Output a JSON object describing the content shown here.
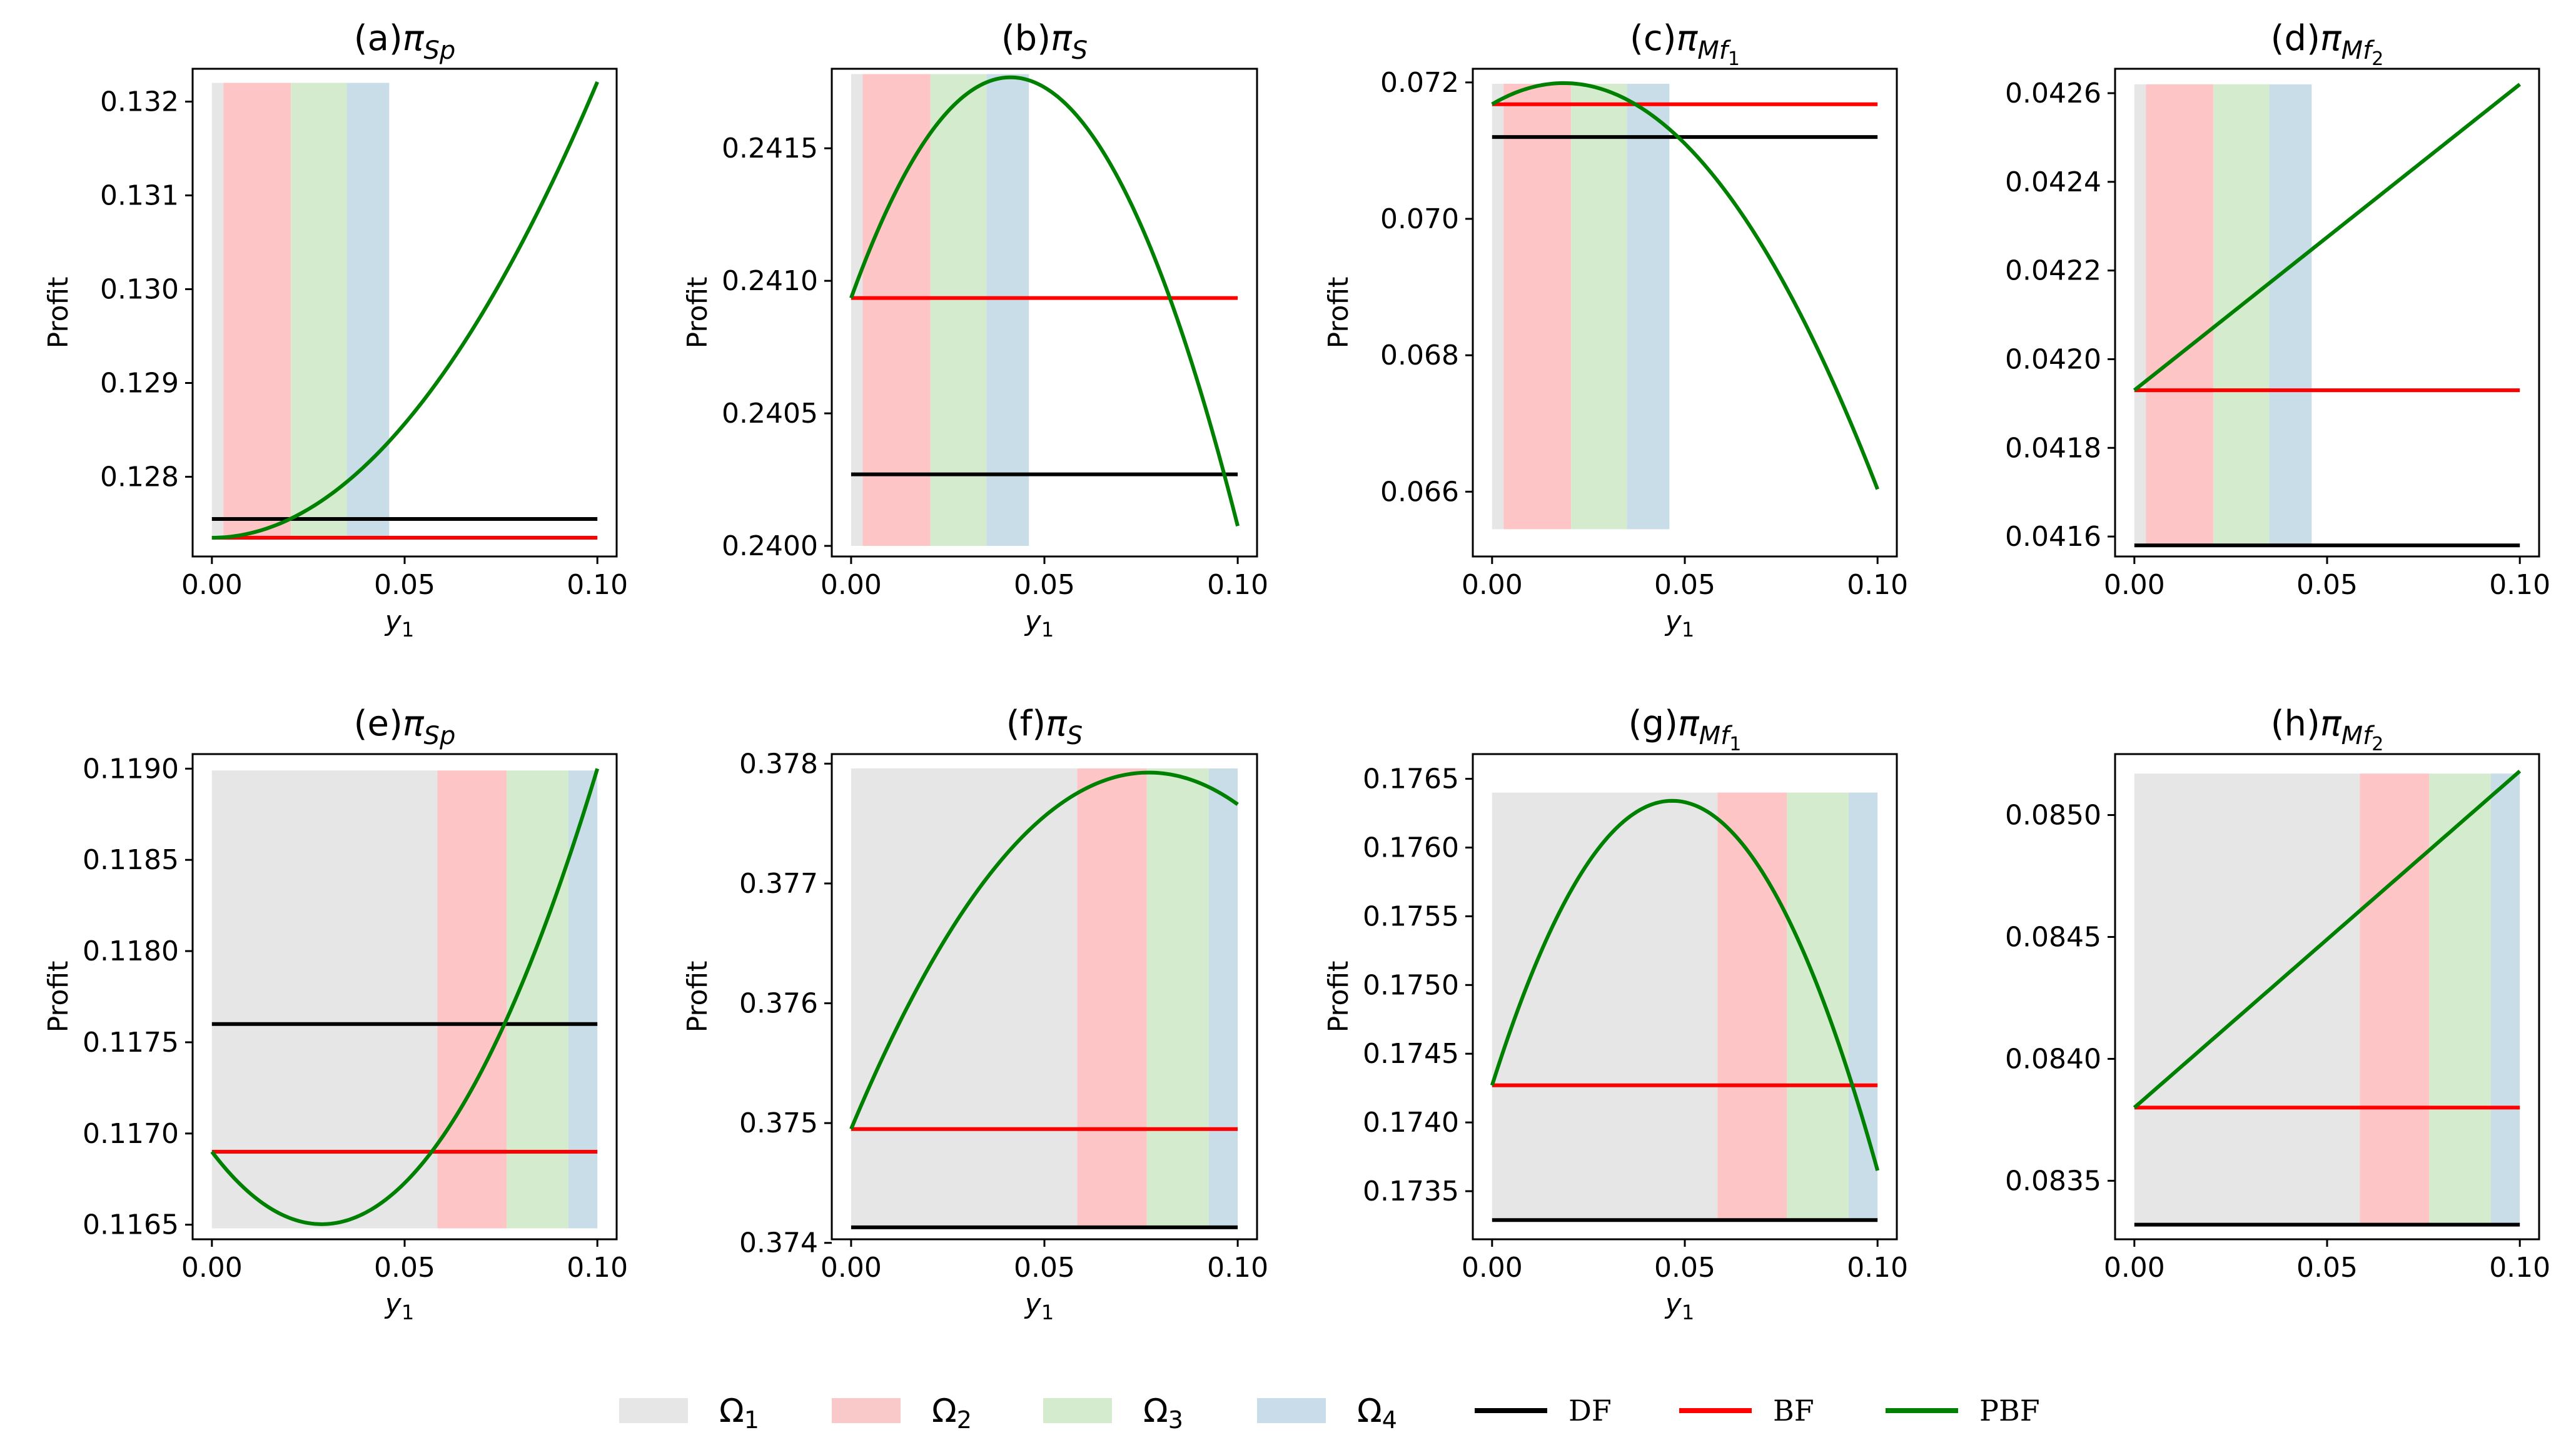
{
  "chart_data": [
    {
      "id": "a",
      "type": "line",
      "title": "(a)πSp",
      "title_prefix": "(a)",
      "title_main": "π",
      "title_sub": "Sp",
      "xlabel": "y",
      "xlabel_sub": "1",
      "ylabel": "Profit",
      "xlim": [
        -0.005,
        0.105
      ],
      "ylim": [
        127.15,
        132.35
      ],
      "yscale": 1000,
      "xticks": [
        0.0,
        0.05,
        0.1
      ],
      "xtick_labels": [
        "0.00",
        "0.05",
        "0.10"
      ],
      "yticks": [
        128,
        129,
        130,
        131,
        132
      ],
      "ytick_labels": [
        "0.128",
        "0.129",
        "0.130",
        "0.131",
        "0.132"
      ],
      "regions": [
        {
          "name": "Ω1",
          "x0": 0.0,
          "x1": 0.003
        },
        {
          "name": "Ω2",
          "x0": 0.003,
          "x1": 0.0205
        },
        {
          "name": "Ω3",
          "x0": 0.0205,
          "x1": 0.035
        },
        {
          "name": "Ω4",
          "x0": 0.035,
          "x1": 0.046
        }
      ],
      "region_y": [
        127.35,
        132.2
      ],
      "series": [
        {
          "name": "DF",
          "kind": "const",
          "value": 127.55
        },
        {
          "name": "BF",
          "kind": "const",
          "value": 127.35
        },
        {
          "name": "PBF",
          "kind": "poly",
          "coef": [
            127.35,
            0,
            486
          ]
        }
      ]
    },
    {
      "id": "b",
      "type": "line",
      "title": "(b)πS",
      "title_prefix": "(b)",
      "title_main": "π",
      "title_sub": "S",
      "xlabel": "y",
      "xlabel_sub": "1",
      "ylabel": "Profit",
      "xlim": [
        -0.005,
        0.105
      ],
      "ylim": [
        239.96,
        241.8
      ],
      "yscale": 1000,
      "xticks": [
        0.0,
        0.05,
        0.1
      ],
      "xtick_labels": [
        "0.00",
        "0.05",
        "0.10"
      ],
      "yticks": [
        240.0,
        240.5,
        241.0,
        241.5
      ],
      "ytick_labels": [
        "0.2400",
        "0.2405",
        "0.2410",
        "0.2415"
      ],
      "regions": [
        {
          "name": "Ω1",
          "x0": 0.0,
          "x1": 0.003
        },
        {
          "name": "Ω2",
          "x0": 0.003,
          "x1": 0.0205
        },
        {
          "name": "Ω3",
          "x0": 0.0205,
          "x1": 0.035
        },
        {
          "name": "Ω4",
          "x0": 0.035,
          "x1": 0.046
        }
      ],
      "region_y": [
        240.0,
        241.78
      ],
      "series": [
        {
          "name": "DF",
          "kind": "const",
          "value": 240.27
        },
        {
          "name": "BF",
          "kind": "const",
          "value": 240.935
        },
        {
          "name": "PBF",
          "kind": "poly",
          "coef": [
            240.935,
            40.4,
            -490
          ]
        }
      ]
    },
    {
      "id": "c",
      "type": "line",
      "title": "(c)πMf1",
      "title_prefix": "(c)",
      "title_main": "π",
      "title_sub": "Mf",
      "title_subsub": "1",
      "xlabel": "y",
      "xlabel_sub": "1",
      "ylabel": "Profit",
      "xlim": [
        -0.005,
        0.105
      ],
      "ylim": [
        65.05,
        72.2
      ],
      "yscale": 1000,
      "xticks": [
        0.0,
        0.05,
        0.1
      ],
      "xtick_labels": [
        "0.00",
        "0.05",
        "0.10"
      ],
      "yticks": [
        66,
        68,
        70,
        72
      ],
      "ytick_labels": [
        "0.066",
        "0.068",
        "0.070",
        "0.072"
      ],
      "regions": [
        {
          "name": "Ω1",
          "x0": 0.0,
          "x1": 0.003
        },
        {
          "name": "Ω2",
          "x0": 0.003,
          "x1": 0.0205
        },
        {
          "name": "Ω3",
          "x0": 0.0205,
          "x1": 0.035
        },
        {
          "name": "Ω4",
          "x0": 0.035,
          "x1": 0.046
        }
      ],
      "region_y": [
        65.45,
        71.98
      ],
      "series": [
        {
          "name": "DF",
          "kind": "const",
          "value": 71.2
        },
        {
          "name": "BF",
          "kind": "const",
          "value": 71.68
        },
        {
          "name": "PBF",
          "kind": "poly",
          "coef": [
            71.68,
            33.36,
            -898
          ]
        }
      ]
    },
    {
      "id": "d",
      "type": "line",
      "title": "(d)πMf2",
      "title_prefix": "(d)",
      "title_main": "π",
      "title_sub": "Mf",
      "title_subsub": "2",
      "xlabel": "",
      "xlabel_sub": "",
      "ylabel": "",
      "xlim": [
        -0.005,
        0.105
      ],
      "ylim": [
        41.555,
        42.655
      ],
      "yscale": 1000,
      "xticks": [
        0.0,
        0.05,
        0.1
      ],
      "xtick_labels": [
        "0.00",
        "0.05",
        "0.10"
      ],
      "yticks": [
        41.6,
        41.8,
        42.0,
        42.2,
        42.4,
        42.6
      ],
      "ytick_labels": [
        "0.0416",
        "0.0418",
        "0.0420",
        "0.0422",
        "0.0424",
        "0.0426"
      ],
      "regions": [
        {
          "name": "Ω1",
          "x0": 0.0,
          "x1": 0.003
        },
        {
          "name": "Ω2",
          "x0": 0.003,
          "x1": 0.0205
        },
        {
          "name": "Ω3",
          "x0": 0.0205,
          "x1": 0.035
        },
        {
          "name": "Ω4",
          "x0": 0.035,
          "x1": 0.046
        }
      ],
      "region_y": [
        41.58,
        42.62
      ],
      "series": [
        {
          "name": "DF",
          "kind": "const",
          "value": 41.58
        },
        {
          "name": "BF",
          "kind": "const",
          "value": 41.93
        },
        {
          "name": "PBF",
          "kind": "poly",
          "coef": [
            41.93,
            6.9,
            0
          ]
        }
      ]
    },
    {
      "id": "e",
      "type": "line",
      "title": "(e)πSp",
      "title_prefix": "(e)",
      "title_main": "π",
      "title_sub": "Sp",
      "xlabel": "y",
      "xlabel_sub": "1",
      "ylabel": "Profit",
      "xlim": [
        -0.005,
        0.105
      ],
      "ylim": [
        116.42,
        119.08
      ],
      "yscale": 1000,
      "xticks": [
        0.0,
        0.05,
        0.1
      ],
      "xtick_labels": [
        "0.00",
        "0.05",
        "0.10"
      ],
      "yticks": [
        116.5,
        117.0,
        117.5,
        118.0,
        118.5,
        119.0
      ],
      "ytick_labels": [
        "0.1165",
        "0.1170",
        "0.1175",
        "0.1180",
        "0.1185",
        "0.1190"
      ],
      "regions": [
        {
          "name": "Ω1",
          "x0": 0.0,
          "x1": 0.0585
        },
        {
          "name": "Ω2",
          "x0": 0.0585,
          "x1": 0.0765
        },
        {
          "name": "Ω3",
          "x0": 0.0765,
          "x1": 0.0925
        },
        {
          "name": "Ω4",
          "x0": 0.0925,
          "x1": 0.1
        }
      ],
      "region_y": [
        116.48,
        118.99
      ],
      "series": [
        {
          "name": "DF",
          "kind": "const",
          "value": 117.6
        },
        {
          "name": "BF",
          "kind": "const",
          "value": 116.9
        },
        {
          "name": "PBF",
          "kind": "poly",
          "coef": [
            116.9,
            -27.86,
            488.6
          ]
        }
      ]
    },
    {
      "id": "f",
      "type": "line",
      "title": "(f)πS",
      "title_prefix": "(f)",
      "title_main": "π",
      "title_sub": "S",
      "xlabel": "y",
      "xlabel_sub": "1",
      "ylabel": "Profit",
      "xlim": [
        -0.005,
        0.105
      ],
      "ylim": [
        374.03,
        378.08
      ],
      "yscale": 1000,
      "xticks": [
        0.0,
        0.05,
        0.1
      ],
      "xtick_labels": [
        "0.00",
        "0.05",
        "0.10"
      ],
      "yticks": [
        374,
        375,
        376,
        377,
        378
      ],
      "ytick_labels": [
        "0.374",
        "0.375",
        "0.376",
        "0.377",
        "0.378"
      ],
      "regions": [
        {
          "name": "Ω1",
          "x0": 0.0,
          "x1": 0.0585
        },
        {
          "name": "Ω2",
          "x0": 0.0585,
          "x1": 0.0765
        },
        {
          "name": "Ω3",
          "x0": 0.0765,
          "x1": 0.0925
        },
        {
          "name": "Ω4",
          "x0": 0.0925,
          "x1": 0.1
        }
      ],
      "region_y": [
        374.13,
        377.96
      ],
      "series": [
        {
          "name": "DF",
          "kind": "const",
          "value": 374.13
        },
        {
          "name": "BF",
          "kind": "const",
          "value": 374.95
        },
        {
          "name": "PBF",
          "kind": "poly",
          "coef": [
            374.95,
            77.3,
            -502
          ]
        }
      ]
    },
    {
      "id": "g",
      "type": "line",
      "title": "(g)πMf1",
      "title_prefix": "(g)",
      "title_main": "π",
      "title_sub": "Mf",
      "title_subsub": "1",
      "xlabel": "y",
      "xlabel_sub": "1",
      "ylabel": "Profit",
      "xlim": [
        -0.005,
        0.105
      ],
      "ylim": [
        173.15,
        176.68
      ],
      "yscale": 1000,
      "xticks": [
        0.0,
        0.05,
        0.1
      ],
      "xtick_labels": [
        "0.00",
        "0.05",
        "0.10"
      ],
      "yticks": [
        173.5,
        174.0,
        174.5,
        175.0,
        175.5,
        176.0,
        176.5
      ],
      "ytick_labels": [
        "0.1735",
        "0.1740",
        "0.1745",
        "0.1750",
        "0.1755",
        "0.1760",
        "0.1765"
      ],
      "regions": [
        {
          "name": "Ω1",
          "x0": 0.0,
          "x1": 0.0585
        },
        {
          "name": "Ω2",
          "x0": 0.0585,
          "x1": 0.0765
        },
        {
          "name": "Ω3",
          "x0": 0.0765,
          "x1": 0.0925
        },
        {
          "name": "Ω4",
          "x0": 0.0925,
          "x1": 0.1
        }
      ],
      "region_y": [
        173.29,
        176.4
      ],
      "series": [
        {
          "name": "DF",
          "kind": "const",
          "value": 173.29
        },
        {
          "name": "BF",
          "kind": "const",
          "value": 174.27
        },
        {
          "name": "PBF",
          "kind": "poly",
          "coef": [
            174.27,
            88.6,
            -948
          ]
        }
      ]
    },
    {
      "id": "h",
      "type": "line",
      "title": "(h)πMf2",
      "title_prefix": "(h)",
      "title_main": "π",
      "title_sub": "Mf",
      "title_subsub": "2",
      "xlabel": "",
      "xlabel_sub": "",
      "ylabel": "",
      "xlim": [
        -0.005,
        0.105
      ],
      "ylim": [
        83.26,
        85.25
      ],
      "yscale": 1000,
      "xticks": [
        0.0,
        0.05,
        0.1
      ],
      "xtick_labels": [
        "0.00",
        "0.05",
        "0.10"
      ],
      "yticks": [
        83.5,
        84.0,
        84.5,
        85.0
      ],
      "ytick_labels": [
        "0.0835",
        "0.0840",
        "0.0845",
        "0.0850"
      ],
      "regions": [
        {
          "name": "Ω1",
          "x0": 0.0,
          "x1": 0.0585
        },
        {
          "name": "Ω2",
          "x0": 0.0585,
          "x1": 0.0765
        },
        {
          "name": "Ω3",
          "x0": 0.0765,
          "x1": 0.0925
        },
        {
          "name": "Ω4",
          "x0": 0.0925,
          "x1": 0.1
        }
      ],
      "region_y": [
        83.32,
        85.17
      ],
      "series": [
        {
          "name": "DF",
          "kind": "const",
          "value": 83.32
        },
        {
          "name": "BF",
          "kind": "const",
          "value": 83.8
        },
        {
          "name": "PBF",
          "kind": "poly",
          "coef": [
            83.8,
            13.8,
            0
          ]
        }
      ]
    }
  ],
  "legend": {
    "regions": [
      {
        "symbol": "Ω",
        "sub": "1",
        "color": "#e6e6e6"
      },
      {
        "symbol": "Ω",
        "sub": "2",
        "color": "#f9c8c8"
      },
      {
        "symbol": "Ω",
        "sub": "3",
        "color": "#d4eccd"
      },
      {
        "symbol": "Ω",
        "sub": "4",
        "color": "#c8dde9"
      }
    ],
    "lines": [
      {
        "label": "DF",
        "color": "#000000"
      },
      {
        "label": "BF",
        "color": "#ff0000"
      },
      {
        "label": "PBF",
        "color": "#008000"
      }
    ]
  },
  "colors": {
    "DF": "#000000",
    "BF": "#ff0000",
    "PBF": "#008000",
    "regions": [
      "#e6e6e6",
      "#fdc5c5",
      "#d5ebce",
      "#c9dde8"
    ]
  }
}
